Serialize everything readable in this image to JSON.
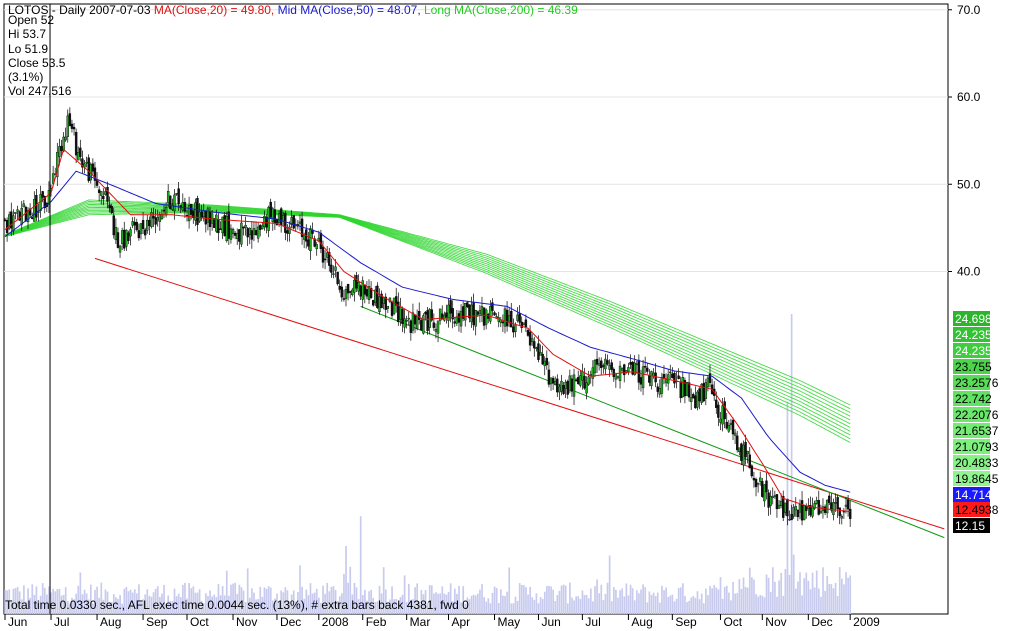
{
  "header": {
    "symbol": "LOTOS",
    "interval": "Daily",
    "date": "2007-07-03",
    "ma_short": {
      "label": "MA(Close,20)",
      "value": "49.80",
      "color": "#e01010"
    },
    "ma_mid": {
      "label": "Mid MA(Close,50)",
      "value": "48.07",
      "color": "#1a1acc"
    },
    "ma_long": {
      "label": "Long MA(Close,200)",
      "value": "46.39",
      "color": "#22cc22"
    }
  },
  "info": {
    "open": "Open 52",
    "hi": "Hi 53.7",
    "lo": "Lo 51.9",
    "close": "Close 53.5",
    "change": "(3.1%)",
    "vol": "Vol 247,516"
  },
  "footer": "Total time 0.0330 sec., AFL exec time 0.0044 sec. (13%), # extra bars back 4381, fwd 0",
  "chart_data": {
    "type": "line",
    "title": "LOTOS - Daily",
    "ylim": [
      0,
      70
    ],
    "y_ticks": [
      "70.0",
      "60.0",
      "50.0",
      "40.0"
    ],
    "y_tick_values": [
      70,
      60,
      50,
      40
    ],
    "x_tick_labels": [
      "Jun",
      "Jul",
      "Aug",
      "Sep",
      "Oct",
      "Nov",
      "Dec",
      "2008",
      "Feb",
      "Mar",
      "Apr",
      "May",
      "Jun",
      "Jul",
      "Aug",
      "Sep",
      "Oct",
      "Nov",
      "Dec",
      "2009"
    ],
    "x_tick_index": [
      0,
      22,
      44,
      66,
      87,
      109,
      130,
      150,
      171,
      192,
      212,
      234,
      255,
      276,
      298,
      319,
      342,
      362,
      384,
      404
    ],
    "cursor_index": 22,
    "close_points": [
      [
        0,
        45.5
      ],
      [
        10,
        46.8
      ],
      [
        20,
        48
      ],
      [
        26,
        54
      ],
      [
        30,
        57.5
      ],
      [
        36,
        53
      ],
      [
        44,
        50
      ],
      [
        50,
        47.5
      ],
      [
        54,
        43
      ],
      [
        60,
        44.5
      ],
      [
        66,
        45
      ],
      [
        72,
        46.5
      ],
      [
        80,
        48.5
      ],
      [
        86,
        47.5
      ],
      [
        92,
        46.5
      ],
      [
        98,
        46
      ],
      [
        104,
        45.5
      ],
      [
        110,
        44.5
      ],
      [
        118,
        44
      ],
      [
        124,
        46
      ],
      [
        130,
        46.5
      ],
      [
        138,
        45
      ],
      [
        146,
        44
      ],
      [
        150,
        43
      ],
      [
        156,
        40.5
      ],
      [
        162,
        37.5
      ],
      [
        168,
        38.5
      ],
      [
        174,
        37.5
      ],
      [
        180,
        36.5
      ],
      [
        188,
        35.5
      ],
      [
        194,
        34
      ],
      [
        204,
        34.5
      ],
      [
        210,
        35
      ],
      [
        220,
        35.2
      ],
      [
        232,
        35
      ],
      [
        240,
        34.5
      ],
      [
        248,
        33.5
      ],
      [
        254,
        30.5
      ],
      [
        262,
        27.5
      ],
      [
        268,
        26.5
      ],
      [
        276,
        27.5
      ],
      [
        284,
        29
      ],
      [
        292,
        29
      ],
      [
        302,
        28.5
      ],
      [
        312,
        27.5
      ],
      [
        322,
        27
      ],
      [
        330,
        25.5
      ],
      [
        336,
        26.5
      ],
      [
        342,
        24
      ],
      [
        350,
        20
      ],
      [
        356,
        18.5
      ],
      [
        362,
        14.5
      ],
      [
        370,
        13
      ],
      [
        378,
        12.3
      ],
      [
        386,
        12.5
      ],
      [
        392,
        12.5
      ],
      [
        398,
        12.8
      ],
      [
        404,
        12.15
      ]
    ],
    "ma20_points": [
      [
        0,
        44.8
      ],
      [
        22,
        49
      ],
      [
        28,
        54
      ],
      [
        40,
        51.5
      ],
      [
        60,
        46.5
      ],
      [
        80,
        46.5
      ],
      [
        100,
        46
      ],
      [
        130,
        45.5
      ],
      [
        150,
        43.5
      ],
      [
        162,
        40
      ],
      [
        180,
        37.2
      ],
      [
        200,
        34.5
      ],
      [
        230,
        35
      ],
      [
        250,
        33.5
      ],
      [
        262,
        30.5
      ],
      [
        280,
        28
      ],
      [
        300,
        28.5
      ],
      [
        320,
        27.5
      ],
      [
        338,
        26.5
      ],
      [
        350,
        22.5
      ],
      [
        362,
        18
      ],
      [
        372,
        14
      ],
      [
        385,
        13
      ],
      [
        404,
        12.49
      ]
    ],
    "ma50_points": [
      [
        0,
        44
      ],
      [
        22,
        48
      ],
      [
        34,
        51.5
      ],
      [
        50,
        50
      ],
      [
        72,
        47.8
      ],
      [
        100,
        46.8
      ],
      [
        130,
        46
      ],
      [
        150,
        44.5
      ],
      [
        170,
        41
      ],
      [
        190,
        38.2
      ],
      [
        214,
        36.8
      ],
      [
        240,
        36
      ],
      [
        260,
        33.5
      ],
      [
        280,
        31.3
      ],
      [
        300,
        30
      ],
      [
        320,
        28.6
      ],
      [
        338,
        28
      ],
      [
        352,
        25.5
      ],
      [
        365,
        21
      ],
      [
        380,
        17
      ],
      [
        392,
        15.5
      ],
      [
        404,
        14.71
      ]
    ],
    "ma200_band_top": [
      [
        0,
        44.2
      ],
      [
        40,
        48.2
      ],
      [
        100,
        47.6
      ],
      [
        160,
        46.5
      ],
      [
        230,
        42
      ],
      [
        290,
        36.5
      ],
      [
        340,
        31.5
      ],
      [
        380,
        27.5
      ],
      [
        404,
        24.7
      ]
    ],
    "ma200_band_bottom": [
      [
        0,
        44
      ],
      [
        40,
        46.5
      ],
      [
        100,
        46.8
      ],
      [
        160,
        46.2
      ],
      [
        230,
        39.8
      ],
      [
        290,
        33.5
      ],
      [
        340,
        28
      ],
      [
        380,
        23.5
      ],
      [
        404,
        20.4
      ]
    ],
    "ma200_band_lines": 11,
    "trendline_red": [
      [
        43,
        41.5
      ],
      [
        449,
        10.5
      ]
    ],
    "trendline_green": [
      [
        170,
        36
      ],
      [
        449,
        9.5
      ]
    ],
    "volume_scale_max": 330000,
    "volume_note": "volume histogram in light blue along bottom of chart",
    "right_labels": [
      {
        "text": "24.698",
        "bg": "#2cb52c",
        "fg": "#ffffff"
      },
      {
        "text": "24.235",
        "bg": "#35c135",
        "fg": "#ffffff"
      },
      {
        "text": "24.235",
        "bg": "#3fcc3f",
        "fg": "#ffffff"
      },
      {
        "text": "23.755",
        "bg": "#4cd54c",
        "fg": "#000000"
      },
      {
        "text": "23.2576",
        "bg": "#58dc58",
        "fg": "#000000"
      },
      {
        "text": "22.742",
        "bg": "#62e262",
        "fg": "#000000"
      },
      {
        "text": "22.2076",
        "bg": "#6be86b",
        "fg": "#000000"
      },
      {
        "text": "21.6537",
        "bg": "#74ec74",
        "fg": "#000000"
      },
      {
        "text": "21.0793",
        "bg": "#7df07d",
        "fg": "#000000"
      },
      {
        "text": "20.4833",
        "bg": "#86f286",
        "fg": "#000000"
      },
      {
        "text": "19.8645",
        "bg": "#90f590",
        "fg": "#000000"
      },
      {
        "text": "14.7144",
        "bg": "#1a1aff",
        "fg": "#ffffff"
      },
      {
        "text": "12.4938",
        "bg": "#ff1a1a",
        "fg": "#000000"
      },
      {
        "text": "12.15",
        "bg": "#000000",
        "fg": "#ffffff"
      }
    ],
    "colors": {
      "ma20": "#e01010",
      "ma50": "#1a1acc",
      "ma200": "#2ad52a",
      "trend_red": "#e01010",
      "trend_green": "#119911",
      "candle_up": "#22aa22",
      "candle_down": "#111111",
      "volume": "#c8cbee"
    }
  }
}
